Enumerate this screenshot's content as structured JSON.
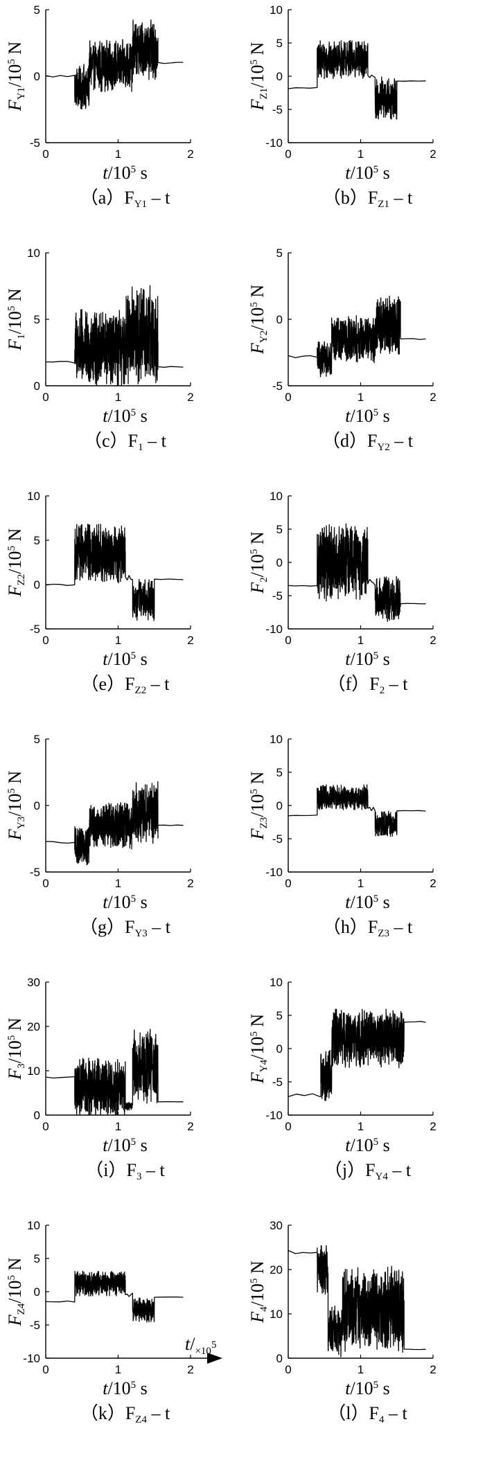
{
  "chart_data": [
    {
      "id": "a",
      "type": "line",
      "caption": "（a）F",
      "caption_var": "F",
      "caption_sub": "Y1",
      "caption_tail": " – t",
      "ylabel_var": "F",
      "ylabel_sub": "Y1",
      "ylabel_unit": "/10",
      "ylabel_exp": "5",
      "ylabel_end": " N",
      "xlabel_var": "t",
      "xlabel_unit": "/10",
      "xlabel_exp": "5",
      "xlabel_end": " s",
      "xlim": [
        0,
        2
      ],
      "xticks": [
        "0",
        "1",
        "2"
      ],
      "ylim": [
        -5,
        5
      ],
      "yticks": [
        "-5",
        "0",
        "5"
      ],
      "segments": [
        {
          "x0": 0,
          "x1": 0.4,
          "base": 0,
          "amp": 0.1
        },
        {
          "x0": 0.4,
          "x1": 0.6,
          "base": -0.8,
          "amp": 1.8
        },
        {
          "x0": 0.6,
          "x1": 1.2,
          "base": 0.8,
          "amp": 2.0
        },
        {
          "x0": 1.2,
          "x1": 1.55,
          "base": 2.0,
          "amp": 2.3
        },
        {
          "x0": 1.55,
          "x1": 1.9,
          "base": 1.0,
          "amp": 0.05
        }
      ]
    },
    {
      "id": "b",
      "type": "line",
      "caption": "（b）F",
      "caption_var": "F",
      "caption_sub": "Z1",
      "caption_tail": " – t",
      "ylabel_var": "F",
      "ylabel_sub": "Z1",
      "ylabel_unit": "/10",
      "ylabel_exp": "5",
      "ylabel_end": " N",
      "xlabel_var": "t",
      "xlabel_unit": "/10",
      "xlabel_exp": "5",
      "xlabel_end": " s",
      "xlim": [
        0,
        2
      ],
      "xticks": [
        "0",
        "1",
        "2"
      ],
      "ylim": [
        -10,
        10
      ],
      "yticks": [
        "-10",
        "-5",
        "0",
        "5",
        "10"
      ],
      "segments": [
        {
          "x0": 0,
          "x1": 0.4,
          "base": -1.8,
          "amp": 0.1
        },
        {
          "x0": 0.4,
          "x1": 1.1,
          "base": 2.5,
          "amp": 3.0
        },
        {
          "x0": 1.1,
          "x1": 1.2,
          "base": 0,
          "amp": 0.3
        },
        {
          "x0": 1.2,
          "x1": 1.5,
          "base": -3.5,
          "amp": 3.5
        },
        {
          "x0": 1.5,
          "x1": 1.9,
          "base": -0.8,
          "amp": 0.1
        }
      ]
    },
    {
      "id": "c",
      "type": "line",
      "caption": "（c）F",
      "caption_var": "F",
      "caption_sub": "1",
      "caption_tail": " – t",
      "ylabel_var": "F",
      "ylabel_sub": "1",
      "ylabel_unit": "/10",
      "ylabel_exp": "5",
      "ylabel_end": " N",
      "xlabel_var": "t",
      "xlabel_unit": "/10",
      "xlabel_exp": "5",
      "xlabel_end": " s",
      "xlim": [
        0,
        2
      ],
      "xticks": [
        "0",
        "1",
        "2"
      ],
      "ylim": [
        0,
        10
      ],
      "yticks": [
        "0",
        "5",
        "10"
      ],
      "segments": [
        {
          "x0": 0,
          "x1": 0.4,
          "base": 1.8,
          "amp": 0.1
        },
        {
          "x0": 0.4,
          "x1": 1.1,
          "base": 2.8,
          "amp": 3.0
        },
        {
          "x0": 1.1,
          "x1": 1.55,
          "base": 3.8,
          "amp": 3.8
        },
        {
          "x0": 1.55,
          "x1": 1.9,
          "base": 1.4,
          "amp": 0.05
        }
      ]
    },
    {
      "id": "d",
      "type": "line",
      "caption": "（d）F",
      "caption_var": "F",
      "caption_sub": "Y2",
      "caption_tail": " – t",
      "ylabel_var": "F",
      "ylabel_sub": "Y2",
      "ylabel_unit": "/10",
      "ylabel_exp": "5",
      "ylabel_end": " N",
      "xlabel_var": "t",
      "xlabel_unit": "/10",
      "xlabel_exp": "5",
      "xlabel_end": " s",
      "xlim": [
        0,
        2
      ],
      "xticks": [
        "0",
        "1",
        "2"
      ],
      "ylim": [
        -5,
        5
      ],
      "yticks": [
        "-5",
        "0",
        "5"
      ],
      "segments": [
        {
          "x0": 0,
          "x1": 0.4,
          "base": -2.8,
          "amp": 0.1
        },
        {
          "x0": 0.4,
          "x1": 0.6,
          "base": -3.0,
          "amp": 1.4
        },
        {
          "x0": 0.6,
          "x1": 1.2,
          "base": -1.5,
          "amp": 1.8
        },
        {
          "x0": 1.2,
          "x1": 1.55,
          "base": -0.5,
          "amp": 2.4
        },
        {
          "x0": 1.55,
          "x1": 1.9,
          "base": -1.5,
          "amp": 0.05
        }
      ]
    },
    {
      "id": "e",
      "type": "line",
      "caption": "（e）F",
      "caption_var": "F",
      "caption_sub": "Z2",
      "caption_tail": " – t",
      "ylabel_var": "F",
      "ylabel_sub": "Z2",
      "ylabel_unit": "/10",
      "ylabel_exp": "5",
      "ylabel_end": " N",
      "xlabel_var": "t",
      "xlabel_unit": "/10",
      "xlabel_exp": "5",
      "xlabel_end": " s",
      "xlim": [
        0,
        2
      ],
      "xticks": [
        "0",
        "1",
        "2"
      ],
      "ylim": [
        -5,
        10
      ],
      "yticks": [
        "-5",
        "0",
        "5",
        "10"
      ],
      "segments": [
        {
          "x0": 0,
          "x1": 0.4,
          "base": 0,
          "amp": 0.1
        },
        {
          "x0": 0.4,
          "x1": 1.1,
          "base": 3.5,
          "amp": 3.5
        },
        {
          "x0": 1.1,
          "x1": 1.2,
          "base": 0.8,
          "amp": 0.3
        },
        {
          "x0": 1.2,
          "x1": 1.5,
          "base": -1.8,
          "amp": 2.5
        },
        {
          "x0": 1.5,
          "x1": 1.9,
          "base": 0.6,
          "amp": 0.05
        }
      ]
    },
    {
      "id": "f",
      "type": "line",
      "caption": "（f）F",
      "caption_var": "F",
      "caption_sub": "2",
      "caption_tail": " – t",
      "ylabel_var": "F",
      "ylabel_sub": "2",
      "ylabel_unit": "/10",
      "ylabel_exp": "5",
      "ylabel_end": " N",
      "xlabel_var": "t",
      "xlabel_unit": "/10",
      "xlabel_exp": "5",
      "xlabel_end": " s",
      "xlim": [
        0,
        2
      ],
      "xticks": [
        "0",
        "1",
        "2"
      ],
      "ylim": [
        -10,
        10
      ],
      "yticks": [
        "-10",
        "-5",
        "0",
        "5",
        "10"
      ],
      "segments": [
        {
          "x0": 0,
          "x1": 0.4,
          "base": -3.5,
          "amp": 0.1
        },
        {
          "x0": 0.4,
          "x1": 1.1,
          "base": 0,
          "amp": 6.0
        },
        {
          "x0": 1.1,
          "x1": 1.2,
          "base": -3.0,
          "amp": 0.5
        },
        {
          "x0": 1.2,
          "x1": 1.55,
          "base": -5.5,
          "amp": 3.5
        },
        {
          "x0": 1.55,
          "x1": 1.9,
          "base": -6.2,
          "amp": 0.05
        }
      ]
    },
    {
      "id": "g",
      "type": "line",
      "caption": "（g）F",
      "caption_var": "F",
      "caption_sub": "Y3",
      "caption_tail": " – t",
      "ylabel_var": "F",
      "ylabel_sub": "Y3",
      "ylabel_unit": "/10",
      "ylabel_exp": "5",
      "ylabel_end": " N",
      "xlabel_var": "t",
      "xlabel_unit": "/10",
      "xlabel_exp": "5",
      "xlabel_end": " s",
      "xlim": [
        0,
        2
      ],
      "xticks": [
        "0",
        "1",
        "2"
      ],
      "ylim": [
        -5,
        5
      ],
      "yticks": [
        "-5",
        "0",
        "5"
      ],
      "segments": [
        {
          "x0": 0,
          "x1": 0.4,
          "base": -2.8,
          "amp": 0.1
        },
        {
          "x0": 0.4,
          "x1": 0.6,
          "base": -3.0,
          "amp": 1.5
        },
        {
          "x0": 0.6,
          "x1": 1.2,
          "base": -1.5,
          "amp": 1.8
        },
        {
          "x0": 1.2,
          "x1": 1.55,
          "base": -0.5,
          "amp": 2.4
        },
        {
          "x0": 1.55,
          "x1": 1.9,
          "base": -1.5,
          "amp": 0.05
        }
      ]
    },
    {
      "id": "h",
      "type": "line",
      "caption": "（h）F",
      "caption_var": "F",
      "caption_sub": "Z3",
      "caption_tail": " – t",
      "ylabel_var": "F",
      "ylabel_sub": "Z3",
      "ylabel_unit": "/10",
      "ylabel_exp": "5",
      "ylabel_end": " N",
      "xlabel_var": "t",
      "xlabel_unit": "/10",
      "xlabel_exp": "5",
      "xlabel_end": " s",
      "xlim": [
        0,
        2
      ],
      "xticks": [
        "0",
        "1",
        "2"
      ],
      "ylim": [
        -10,
        10
      ],
      "yticks": [
        "-10",
        "-5",
        "0",
        "5",
        "10"
      ],
      "segments": [
        {
          "x0": 0,
          "x1": 0.4,
          "base": -1.5,
          "amp": 0.1
        },
        {
          "x0": 0.4,
          "x1": 1.1,
          "base": 1.2,
          "amp": 2.0
        },
        {
          "x0": 1.1,
          "x1": 1.2,
          "base": -0.5,
          "amp": 0.3
        },
        {
          "x0": 1.2,
          "x1": 1.5,
          "base": -2.8,
          "amp": 2.0
        },
        {
          "x0": 1.5,
          "x1": 1.9,
          "base": -0.8,
          "amp": 0.05
        }
      ]
    },
    {
      "id": "i",
      "type": "line",
      "caption": "（i）F",
      "caption_var": "F",
      "caption_sub": "3",
      "caption_tail": " – t",
      "ylabel_var": "F",
      "ylabel_sub": "3",
      "ylabel_unit": "/10",
      "ylabel_exp": "5",
      "ylabel_end": " N",
      "xlabel_var": "t",
      "xlabel_unit": "/10",
      "xlabel_exp": "5",
      "xlabel_end": " s",
      "xlim": [
        0,
        2
      ],
      "xticks": [
        "0",
        "1",
        "2"
      ],
      "ylim": [
        0,
        30
      ],
      "yticks": [
        "0",
        "10",
        "20",
        "30"
      ],
      "segments": [
        {
          "x0": 0,
          "x1": 0.4,
          "base": 8.5,
          "amp": 0.2
        },
        {
          "x0": 0.4,
          "x1": 1.1,
          "base": 6.0,
          "amp": 7.0
        },
        {
          "x0": 1.1,
          "x1": 1.2,
          "base": 2.0,
          "amp": 1.0
        },
        {
          "x0": 1.2,
          "x1": 1.55,
          "base": 11.0,
          "amp": 9.0
        },
        {
          "x0": 1.55,
          "x1": 1.9,
          "base": 3.0,
          "amp": 0.05
        }
      ]
    },
    {
      "id": "j",
      "type": "line",
      "caption": "（j）F",
      "caption_var": "F",
      "caption_sub": "Y4",
      "caption_tail": " – t",
      "ylabel_var": "F",
      "ylabel_sub": "Y4",
      "ylabel_unit": "/10",
      "ylabel_exp": "5",
      "ylabel_end": " N",
      "xlabel_var": "t",
      "xlabel_unit": "/10",
      "xlabel_exp": "5",
      "xlabel_end": " s",
      "xlim": [
        0,
        2
      ],
      "xticks": [
        "0",
        "1",
        "2"
      ],
      "ylim": [
        -10,
        10
      ],
      "yticks": [
        "-10",
        "-5",
        "0",
        "5",
        "10"
      ],
      "segments": [
        {
          "x0": 0,
          "x1": 0.45,
          "base": -7.0,
          "amp": 0.3
        },
        {
          "x0": 0.45,
          "x1": 0.6,
          "base": -4.0,
          "amp": 4.0
        },
        {
          "x0": 0.6,
          "x1": 1.6,
          "base": 1.5,
          "amp": 4.5
        },
        {
          "x0": 1.6,
          "x1": 1.9,
          "base": 4.0,
          "amp": 0.1
        }
      ]
    },
    {
      "id": "k",
      "type": "line",
      "caption": "（k）F",
      "caption_var": "F",
      "caption_sub": "Z4",
      "caption_tail": " – t",
      "ylabel_var": "F",
      "ylabel_sub": "Z4",
      "ylabel_unit": "/10",
      "ylabel_exp": "5",
      "ylabel_end": " N",
      "xlabel_var": "t",
      "xlabel_unit": "/10",
      "xlabel_exp": "5",
      "xlabel_end": " s",
      "xlim": [
        0,
        2
      ],
      "xticks": [
        "0",
        "1",
        "2"
      ],
      "ylim": [
        -10,
        10
      ],
      "yticks": [
        "-10",
        "-5",
        "0",
        "5",
        "10"
      ],
      "axis_annotation": {
        "var": "t",
        "unit": "/",
        "mult": "×10",
        "exp": "5"
      },
      "segments": [
        {
          "x0": 0,
          "x1": 0.4,
          "base": -1.5,
          "amp": 0.1
        },
        {
          "x0": 0.4,
          "x1": 1.1,
          "base": 1.2,
          "amp": 2.0
        },
        {
          "x0": 1.1,
          "x1": 1.2,
          "base": -0.5,
          "amp": 0.3
        },
        {
          "x0": 1.2,
          "x1": 1.5,
          "base": -2.8,
          "amp": 2.0
        },
        {
          "x0": 1.5,
          "x1": 1.9,
          "base": -0.8,
          "amp": 0.05
        }
      ]
    },
    {
      "id": "l",
      "type": "line",
      "caption": "（l）F",
      "caption_var": "F",
      "caption_sub": "4",
      "caption_tail": " – t",
      "ylabel_var": "F",
      "ylabel_sub": "4",
      "ylabel_unit": "/10",
      "ylabel_exp": "5",
      "ylabel_end": " N",
      "xlabel_var": "t",
      "xlabel_unit": "/10",
      "xlabel_exp": "5",
      "xlabel_end": " s",
      "xlim": [
        0,
        2
      ],
      "xticks": [
        "0",
        "1",
        "2"
      ],
      "ylim": [
        0,
        30
      ],
      "yticks": [
        "0",
        "10",
        "20",
        "30"
      ],
      "segments": [
        {
          "x0": 0,
          "x1": 0.4,
          "base": 24.0,
          "amp": 0.4
        },
        {
          "x0": 0.4,
          "x1": 0.55,
          "base": 20.0,
          "amp": 6.0
        },
        {
          "x0": 0.55,
          "x1": 0.75,
          "base": 6.0,
          "amp": 6.0
        },
        {
          "x0": 0.75,
          "x1": 1.6,
          "base": 11.0,
          "amp": 10.0
        },
        {
          "x0": 1.6,
          "x1": 1.9,
          "base": 2.0,
          "amp": 0.05
        }
      ]
    }
  ]
}
